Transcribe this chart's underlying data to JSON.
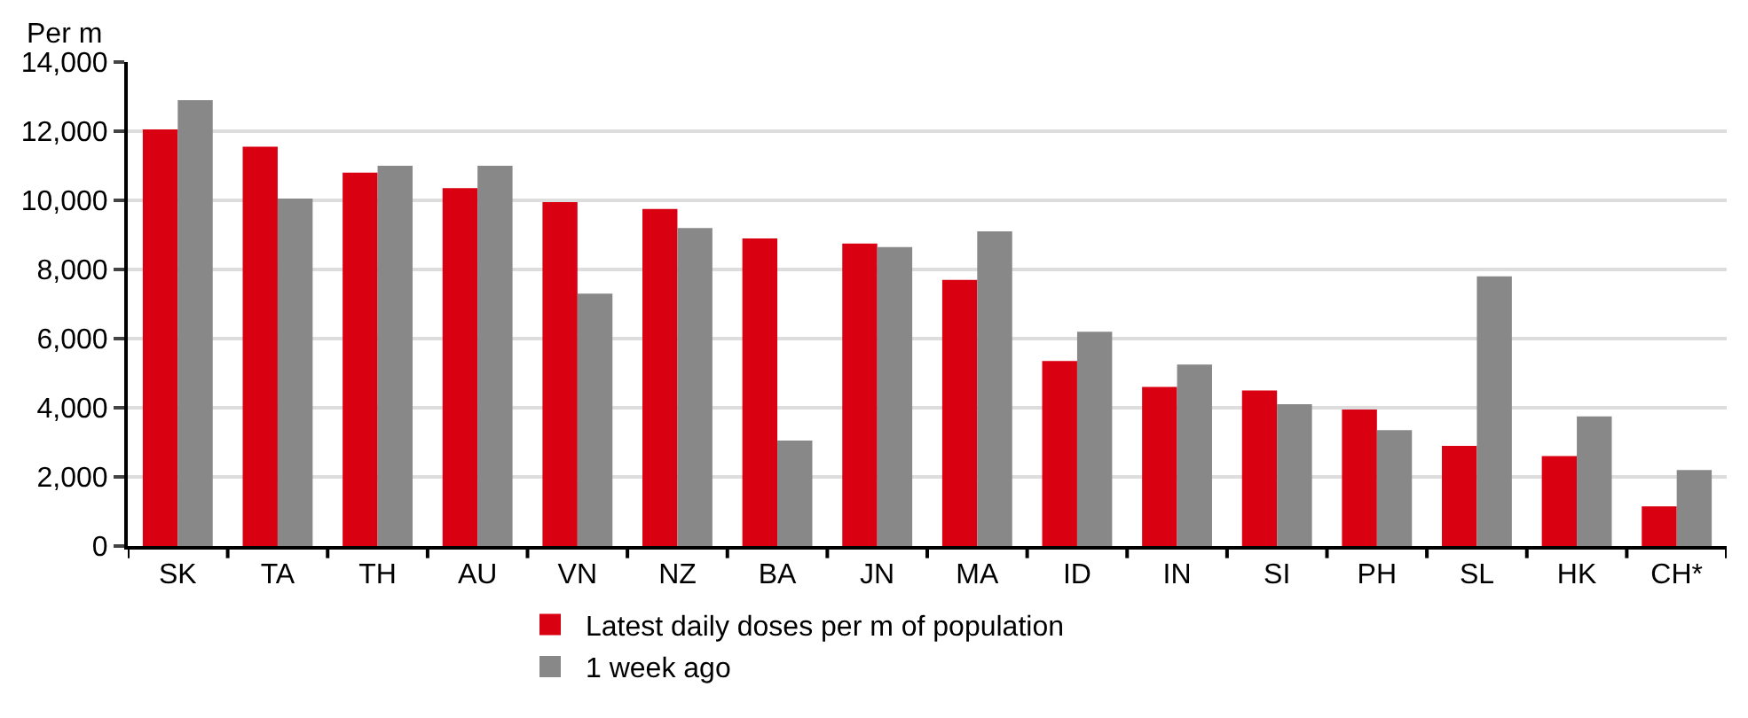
{
  "chart_data": {
    "type": "bar",
    "ylabel": "Per m",
    "categories": [
      "SK",
      "TA",
      "TH",
      "AU",
      "VN",
      "NZ",
      "BA",
      "JN",
      "MA",
      "ID",
      "IN",
      "SI",
      "PH",
      "SL",
      "HK",
      "CH*"
    ],
    "series": [
      {
        "name": "Latest daily doses per m of population",
        "color": "#d90012",
        "values": [
          12050,
          11550,
          10800,
          10350,
          9950,
          9750,
          8900,
          8750,
          7700,
          5350,
          4600,
          4500,
          3950,
          2900,
          2600,
          1150
        ]
      },
      {
        "name": "1 week ago",
        "color": "#888888",
        "values": [
          12900,
          10050,
          11000,
          11000,
          7300,
          9200,
          3050,
          8650,
          9100,
          6200,
          5250,
          4100,
          3350,
          7800,
          3750,
          2200
        ]
      }
    ],
    "ylim": [
      0,
      14000
    ],
    "yticks": [
      0,
      {
        "value": 2000,
        "label": "2,000"
      },
      {
        "value": 4000,
        "label": "4,000"
      },
      {
        "value": 6000,
        "label": "6,000"
      },
      {
        "value": 8000,
        "label": "8,000"
      },
      {
        "value": 10000,
        "label": "10,000"
      },
      {
        "value": 12000,
        "label": "12,000"
      },
      {
        "value": 14000,
        "label": "14,000"
      }
    ],
    "grid": "y",
    "legend": "bottom"
  }
}
